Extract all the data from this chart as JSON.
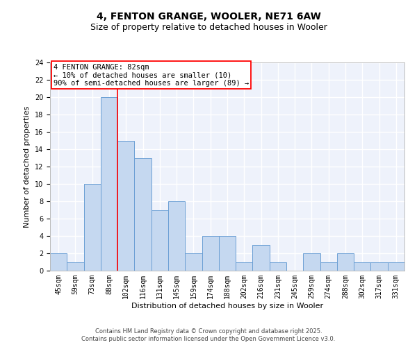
{
  "title": "4, FENTON GRANGE, WOOLER, NE71 6AW",
  "subtitle": "Size of property relative to detached houses in Wooler",
  "xlabel": "Distribution of detached houses by size in Wooler",
  "ylabel": "Number of detached properties",
  "bin_labels": [
    "45sqm",
    "59sqm",
    "73sqm",
    "88sqm",
    "102sqm",
    "116sqm",
    "131sqm",
    "145sqm",
    "159sqm",
    "174sqm",
    "188sqm",
    "202sqm",
    "216sqm",
    "231sqm",
    "245sqm",
    "259sqm",
    "274sqm",
    "288sqm",
    "302sqm",
    "317sqm",
    "331sqm"
  ],
  "bin_values": [
    2,
    1,
    10,
    20,
    15,
    13,
    7,
    8,
    2,
    4,
    4,
    1,
    3,
    1,
    0,
    2,
    1,
    2,
    1,
    1,
    1
  ],
  "bar_color": "#c5d8f0",
  "bar_edge_color": "#6b9fd4",
  "vline_color": "red",
  "vline_bin_index": 3,
  "annotation_text": "4 FENTON GRANGE: 82sqm\n← 10% of detached houses are smaller (10)\n90% of semi-detached houses are larger (89) →",
  "annotation_box_color": "white",
  "annotation_box_edge_color": "red",
  "ylim": [
    0,
    24
  ],
  "yticks": [
    0,
    2,
    4,
    6,
    8,
    10,
    12,
    14,
    16,
    18,
    20,
    22,
    24
  ],
  "background_color": "#eef2fb",
  "grid_color": "white",
  "footer_line1": "Contains HM Land Registry data © Crown copyright and database right 2025.",
  "footer_line2": "Contains public sector information licensed under the Open Government Licence v3.0.",
  "title_fontsize": 10,
  "subtitle_fontsize": 9,
  "xlabel_fontsize": 8,
  "ylabel_fontsize": 8,
  "tick_fontsize": 7,
  "annotation_fontsize": 7.5,
  "footer_fontsize": 6
}
